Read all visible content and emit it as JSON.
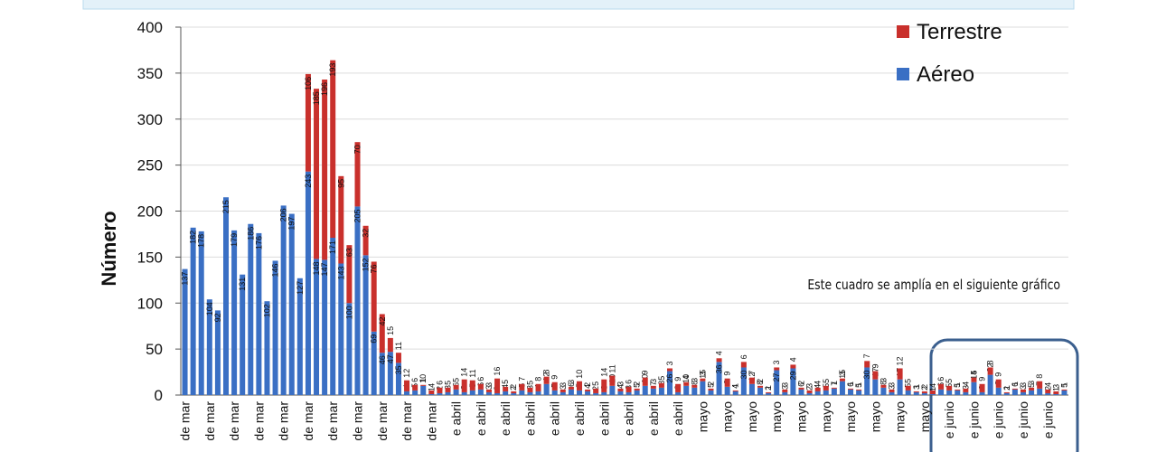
{
  "chart_data": {
    "type": "stacked_bar",
    "ylabel": "Número",
    "annotation": "Este cuadro se amplía en el siguiente gráfico",
    "legend_position": "upper right",
    "grid": true,
    "ylim": [
      0,
      400
    ],
    "yticks": [
      0,
      50,
      100,
      150,
      200,
      250,
      300,
      350,
      400
    ],
    "categories": [
      "de mar",
      null,
      null,
      "de mar",
      null,
      null,
      "de mar",
      null,
      null,
      "de mar",
      null,
      null,
      "de mar",
      null,
      null,
      "de mar",
      null,
      null,
      "de mar",
      null,
      null,
      "de mar",
      null,
      null,
      "de mar",
      null,
      null,
      "de mar",
      null,
      null,
      "de mar",
      null,
      null,
      "e abril",
      null,
      null,
      "e abril",
      null,
      null,
      "e abril",
      null,
      null,
      "e abril",
      null,
      null,
      "e abril",
      null,
      null,
      "e abril",
      null,
      null,
      "e abril",
      null,
      null,
      "e abril",
      null,
      null,
      "e abril",
      null,
      null,
      "e abril",
      null,
      null,
      "mayo",
      null,
      null,
      "mayo",
      null,
      null,
      "mayo",
      null,
      null,
      "mayo",
      null,
      null,
      "mayo",
      null,
      null,
      "mayo",
      null,
      null,
      "mayo",
      null,
      null,
      "mayo",
      null,
      null,
      "mayo",
      null,
      null,
      "mayo",
      null,
      null,
      "e junio",
      null,
      null,
      "e junio",
      null,
      null,
      "e junio",
      null,
      null,
      "e junio",
      null,
      null,
      "e junio",
      null,
      null
    ],
    "series": [
      {
        "name": "Aéreo",
        "color": "#3a6fc4",
        "values": [
          137,
          182,
          178,
          104,
          92,
          215,
          179,
          131,
          186,
          176,
          102,
          146,
          206,
          197,
          127,
          243,
          148,
          147,
          171,
          143,
          100,
          205,
          152,
          69,
          46,
          47,
          35,
          4,
          5,
          10,
          1,
          2,
          3,
          6,
          3,
          5,
          6,
          3,
          2,
          4,
          2,
          5,
          3,
          4,
          12,
          5,
          3,
          6,
          5,
          4,
          2,
          3,
          10,
          4,
          3,
          5,
          10,
          7,
          8,
          26,
          3,
          10,
          8,
          15,
          5,
          36,
          9,
          4,
          30,
          12,
          8,
          2,
          27,
          3,
          29,
          6,
          2,
          4,
          5,
          7,
          15,
          6,
          5,
          30,
          17,
          8,
          3,
          17,
          5,
          3,
          2,
          1,
          6,
          5,
          5,
          3,
          14,
          3,
          22,
          8,
          2,
          6,
          3,
          5,
          7,
          2,
          1,
          5
        ]
      },
      {
        "name": "Terrestre",
        "color": "#c9302c",
        "values": [
          null,
          null,
          null,
          null,
          null,
          null,
          null,
          null,
          null,
          null,
          null,
          null,
          null,
          null,
          null,
          106,
          185,
          196,
          193,
          95,
          63,
          70,
          32,
          76,
          42,
          15,
          11,
          12,
          6,
          1,
          4,
          6,
          5,
          5,
          14,
          11,
          6,
          3,
          16,
          5,
          2,
          7,
          5,
          8,
          8,
          9,
          3,
          3,
          10,
          2,
          5,
          14,
          11,
          3,
          6,
          2,
          9,
          3,
          5,
          3,
          9,
          4,
          3,
          3,
          2,
          4,
          9,
          1,
          6,
          7,
          2,
          1,
          3,
          3,
          4,
          2,
          3,
          4,
          5,
          1,
          3,
          1,
          1,
          7,
          9,
          3,
          3,
          12,
          5,
          1,
          2,
          4,
          6,
          5,
          1,
          4,
          5,
          9,
          8,
          9,
          1,
          1,
          3,
          3,
          8,
          4,
          3,
          1
        ]
      }
    ]
  }
}
